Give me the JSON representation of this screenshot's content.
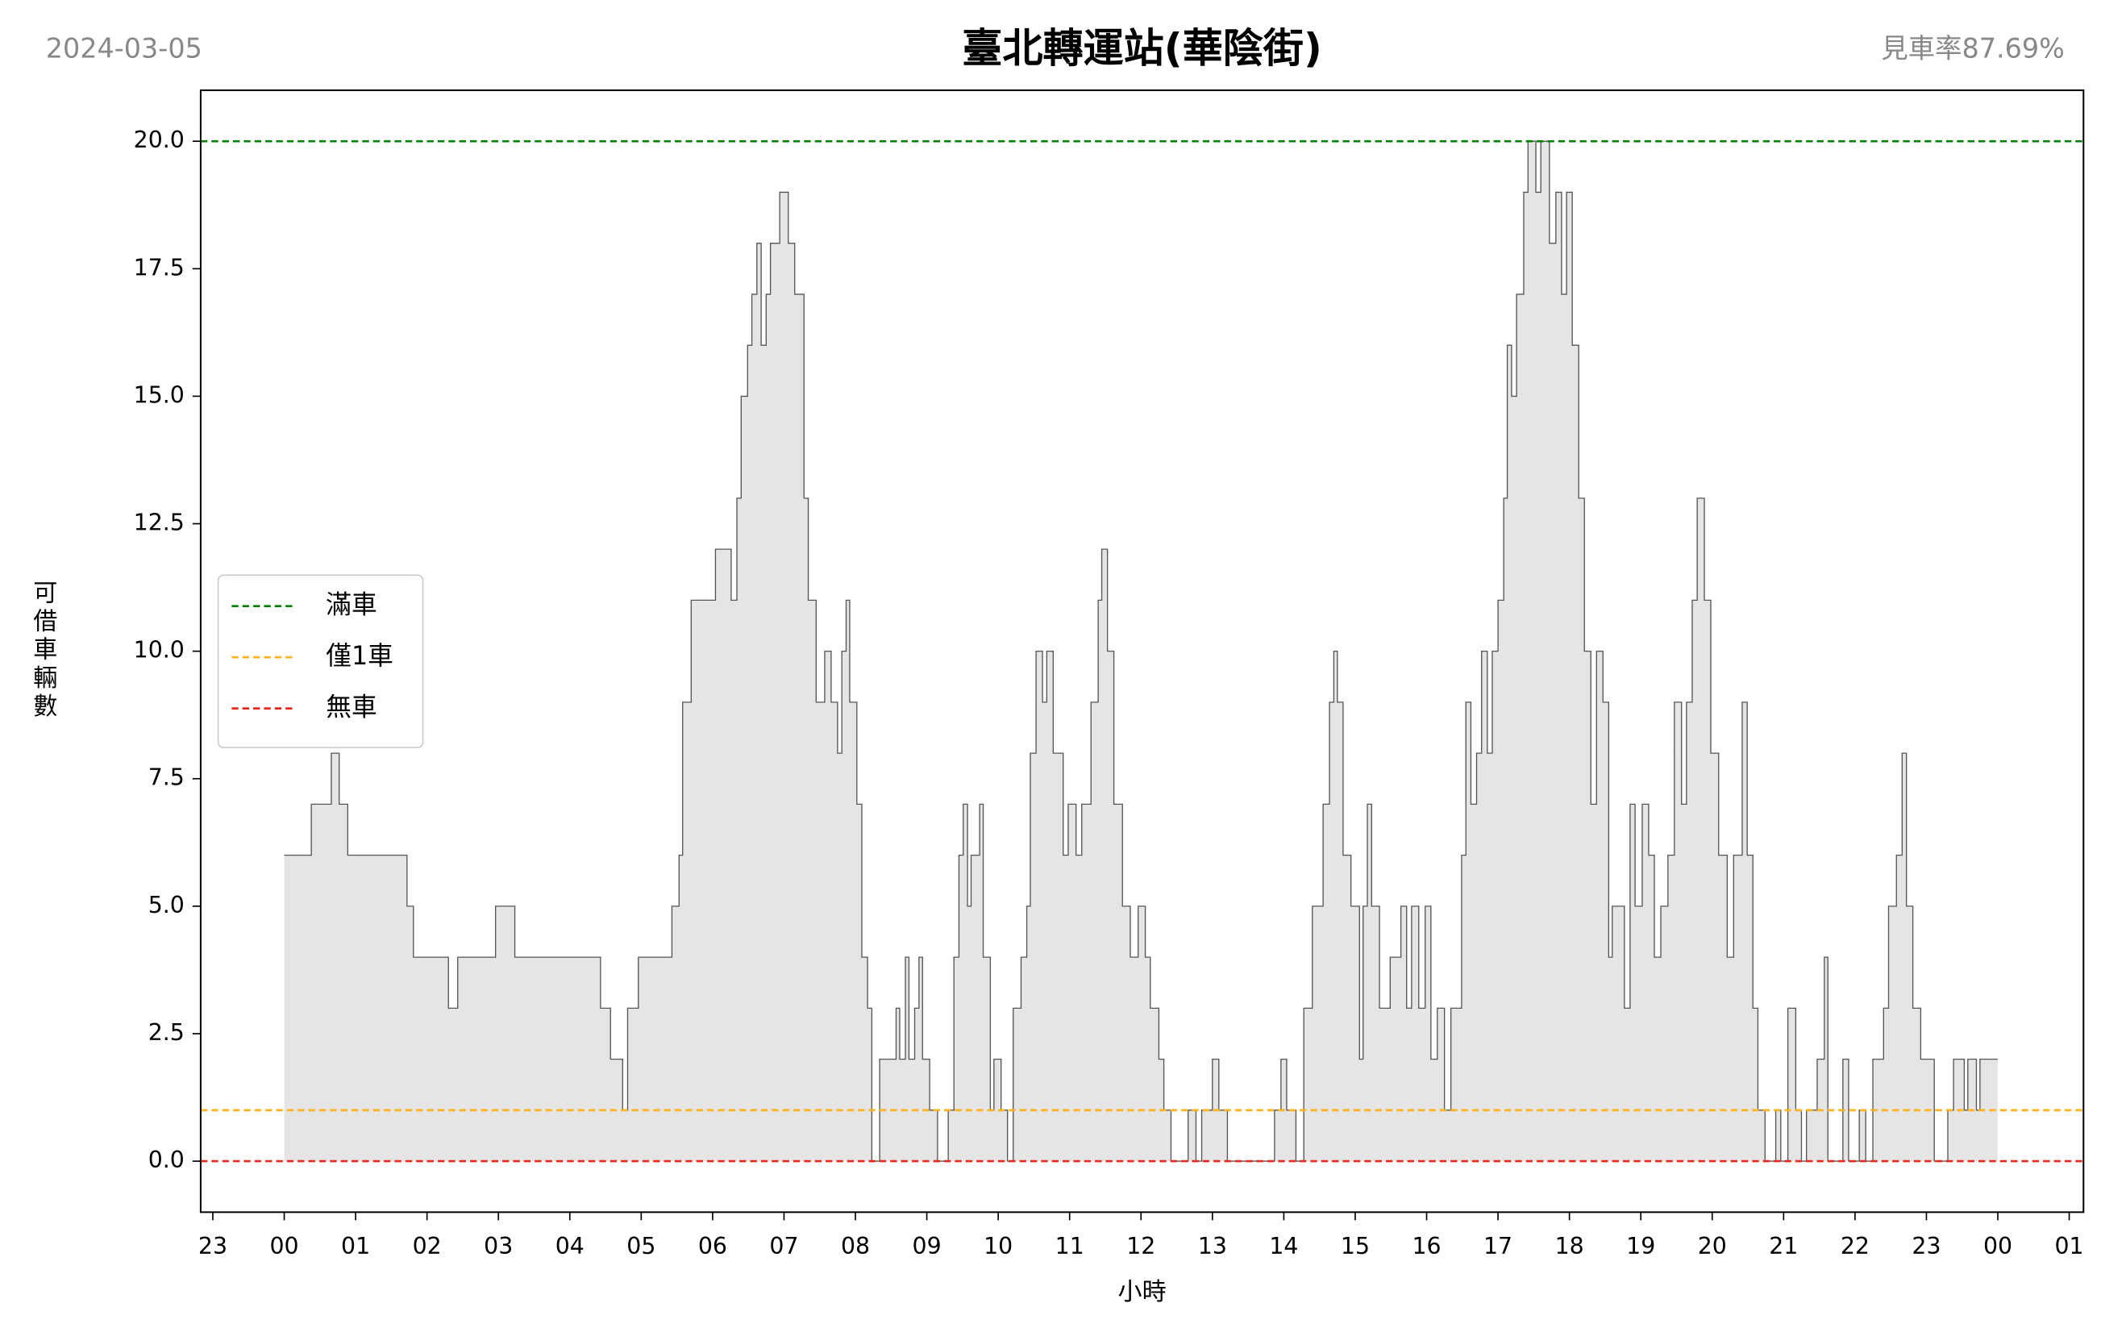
{
  "chart_data": {
    "type": "area",
    "step": "post",
    "title": "臺北轉運站(華陰街)",
    "date": "2024-03-05",
    "rate": "見車率87.69%",
    "xlabel": "小時",
    "ylabel": "可借車輛數",
    "fill": "#e5e5e5",
    "line_color": "#555555",
    "xlim": [
      -1.17,
      25.2
    ],
    "ylim": [
      -1,
      21
    ],
    "xticks": [
      {
        "value": -1,
        "label": "23"
      },
      {
        "value": 0,
        "label": "00"
      },
      {
        "value": 1,
        "label": "01"
      },
      {
        "value": 2,
        "label": "02"
      },
      {
        "value": 3,
        "label": "03"
      },
      {
        "value": 4,
        "label": "04"
      },
      {
        "value": 5,
        "label": "05"
      },
      {
        "value": 6,
        "label": "06"
      },
      {
        "value": 7,
        "label": "07"
      },
      {
        "value": 8,
        "label": "08"
      },
      {
        "value": 9,
        "label": "09"
      },
      {
        "value": 10,
        "label": "10"
      },
      {
        "value": 11,
        "label": "11"
      },
      {
        "value": 12,
        "label": "12"
      },
      {
        "value": 13,
        "label": "13"
      },
      {
        "value": 14,
        "label": "14"
      },
      {
        "value": 15,
        "label": "15"
      },
      {
        "value": 16,
        "label": "16"
      },
      {
        "value": 17,
        "label": "17"
      },
      {
        "value": 18,
        "label": "18"
      },
      {
        "value": 19,
        "label": "19"
      },
      {
        "value": 20,
        "label": "20"
      },
      {
        "value": 21,
        "label": "21"
      },
      {
        "value": 22,
        "label": "22"
      },
      {
        "value": 23,
        "label": "23"
      },
      {
        "value": 24,
        "label": "00"
      },
      {
        "value": 25,
        "label": "01"
      }
    ],
    "yticks": [
      {
        "value": 0,
        "label": "0.0"
      },
      {
        "value": 2.5,
        "label": "2.5"
      },
      {
        "value": 5,
        "label": "5.0"
      },
      {
        "value": 7.5,
        "label": "7.5"
      },
      {
        "value": 10,
        "label": "10.0"
      },
      {
        "value": 12.5,
        "label": "12.5"
      },
      {
        "value": 15,
        "label": "15.0"
      },
      {
        "value": 17.5,
        "label": "17.5"
      },
      {
        "value": 20,
        "label": "20.0"
      }
    ],
    "hlines": [
      {
        "name": "滿車",
        "value": 20,
        "color": "#008000"
      },
      {
        "name": "僅1車",
        "value": 1,
        "color": "#ffb31a"
      },
      {
        "name": "無車",
        "value": 0,
        "color": "#e8291c"
      }
    ],
    "legend": "center left",
    "x": [
      0.0,
      0.38,
      0.66,
      0.77,
      0.89,
      1.72,
      1.81,
      2.3,
      2.43,
      2.96,
      3.23,
      4.43,
      4.57,
      4.74,
      4.81,
      4.96,
      5.43,
      5.53,
      5.58,
      5.7,
      6.04,
      6.26,
      6.34,
      6.4,
      6.49,
      6.55,
      6.62,
      6.68,
      6.75,
      6.81,
      6.94,
      7.06,
      7.15,
      7.28,
      7.34,
      7.45,
      7.57,
      7.66,
      7.75,
      7.81,
      7.87,
      7.92,
      8.02,
      8.09,
      8.17,
      8.23,
      8.34,
      8.57,
      8.62,
      8.7,
      8.75,
      8.83,
      8.89,
      8.94,
      9.04,
      9.15,
      9.3,
      9.38,
      9.45,
      9.51,
      9.57,
      9.62,
      9.74,
      9.79,
      9.89,
      9.94,
      10.04,
      10.13,
      10.21,
      10.32,
      10.4,
      10.45,
      10.53,
      10.62,
      10.68,
      10.77,
      10.91,
      10.98,
      11.09,
      11.17,
      11.3,
      11.4,
      11.45,
      11.53,
      11.62,
      11.74,
      11.85,
      11.96,
      12.06,
      12.13,
      12.25,
      12.32,
      12.42,
      12.66,
      12.77,
      12.85,
      13.0,
      13.09,
      13.21,
      13.87,
      13.96,
      14.04,
      14.17,
      14.28,
      14.4,
      14.55,
      14.64,
      14.7,
      14.75,
      14.83,
      14.94,
      15.06,
      15.11,
      15.17,
      15.23,
      15.34,
      15.49,
      15.64,
      15.72,
      15.79,
      15.89,
      15.98,
      16.06,
      16.15,
      16.25,
      16.34,
      16.49,
      16.55,
      16.62,
      16.7,
      16.77,
      16.85,
      16.92,
      17.0,
      17.08,
      17.13,
      17.19,
      17.26,
      17.36,
      17.42,
      17.53,
      17.6,
      17.72,
      17.81,
      17.89,
      17.96,
      18.04,
      18.13,
      18.21,
      18.3,
      18.38,
      18.47,
      18.55,
      18.6,
      18.77,
      18.85,
      18.92,
      19.02,
      19.11,
      19.19,
      19.28,
      19.38,
      19.47,
      19.57,
      19.64,
      19.72,
      19.79,
      19.89,
      19.98,
      20.09,
      20.21,
      20.3,
      20.42,
      20.49,
      20.57,
      20.64,
      20.74,
      20.89,
      20.96,
      21.06,
      21.17,
      21.25,
      21.32,
      21.47,
      21.57,
      21.62,
      21.83,
      21.91,
      22.06,
      22.15,
      22.25,
      22.4,
      22.47,
      22.58,
      22.66,
      22.72,
      22.81,
      22.92,
      23.11,
      23.3,
      23.38,
      23.53,
      23.58,
      23.7,
      23.75,
      24.0
    ],
    "values": [
      6,
      7,
      8,
      7,
      6,
      5,
      4,
      3,
      4,
      5,
      4,
      3,
      2,
      1,
      3,
      4,
      5,
      6,
      9,
      11,
      12,
      11,
      13,
      15,
      16,
      17,
      18,
      16,
      17,
      18,
      19,
      18,
      17,
      13,
      11,
      9,
      10,
      9,
      8,
      10,
      11,
      9,
      7,
      4,
      3,
      0,
      2,
      3,
      2,
      4,
      2,
      3,
      4,
      2,
      1,
      0,
      1,
      4,
      6,
      7,
      5,
      6,
      7,
      4,
      1,
      2,
      1,
      0,
      3,
      4,
      5,
      8,
      10,
      9,
      10,
      8,
      6,
      7,
      6,
      7,
      9,
      11,
      12,
      10,
      7,
      5,
      4,
      5,
      4,
      3,
      2,
      1,
      0,
      1,
      0,
      1,
      2,
      1,
      0,
      1,
      2,
      1,
      0,
      3,
      5,
      7,
      9,
      10,
      9,
      6,
      5,
      2,
      5,
      7,
      5,
      3,
      4,
      5,
      3,
      5,
      3,
      5,
      2,
      3,
      1,
      3,
      6,
      9,
      7,
      8,
      10,
      8,
      10,
      11,
      13,
      16,
      15,
      17,
      19,
      20,
      19,
      20,
      18,
      19,
      17,
      19,
      16,
      13,
      10,
      7,
      10,
      9,
      4,
      5,
      3,
      7,
      5,
      7,
      6,
      4,
      5,
      6,
      9,
      7,
      9,
      11,
      13,
      11,
      8,
      6,
      4,
      6,
      9,
      6,
      3,
      1,
      0,
      1,
      0,
      3,
      1,
      0,
      1,
      2,
      4,
      0,
      2,
      0,
      1,
      0,
      2,
      3,
      5,
      6,
      8,
      5,
      3,
      2,
      0,
      1,
      2,
      1,
      2,
      1,
      2,
      2
    ]
  }
}
